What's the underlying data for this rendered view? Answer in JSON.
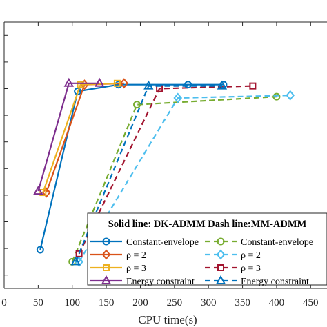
{
  "chart_data": {
    "type": "line",
    "xlabel": "CPU time(s)",
    "ylabel": "",
    "title": "",
    "xlim": [
      0,
      474
    ],
    "ylim": [
      0,
      1
    ],
    "x_ticks": [
      0,
      50,
      100,
      150,
      200,
      250,
      300,
      350,
      400,
      450
    ],
    "x_tick_labels": [
      "0",
      "50",
      "100",
      "150",
      "200",
      "250",
      "300",
      "350",
      "400",
      "450"
    ],
    "y_ticks": [
      0.05,
      0.15,
      0.25,
      0.35,
      0.45,
      0.55,
      0.65,
      0.75,
      0.85,
      0.95
    ],
    "legend": {
      "title": "Solid line: DK-ADMM Dash line:MM-ADMM",
      "placement": "bottom-right"
    },
    "series": [
      {
        "name": "Constant-envelope",
        "style": "solid",
        "marker": "circle",
        "color": "#0072BD",
        "x": [
          53,
          108,
          168,
          270,
          322
        ],
        "y": [
          0.145,
          0.74,
          0.765,
          0.765,
          0.765
        ]
      },
      {
        "name": "ρ = 2",
        "style": "solid",
        "marker": "diamond",
        "color": "#D95319",
        "x": [
          62,
          118,
          176
        ],
        "y": [
          0.36,
          0.765,
          0.77
        ]
      },
      {
        "name": "ρ = 3",
        "style": "solid",
        "marker": "square",
        "color": "#EDB120",
        "x": [
          57,
          112,
          166
        ],
        "y": [
          0.36,
          0.765,
          0.77
        ]
      },
      {
        "name": "Energy constraint",
        "style": "solid",
        "marker": "triangle",
        "color": "#7E2F8E",
        "x": [
          50,
          95,
          140
        ],
        "y": [
          0.365,
          0.77,
          0.77
        ]
      },
      {
        "name": "Constant-envelope",
        "style": "dashed",
        "marker": "circle",
        "color": "#77AC30",
        "x": [
          100,
          195,
          400
        ],
        "y": [
          0.1,
          0.69,
          0.72
        ]
      },
      {
        "name": "ρ = 2",
        "style": "dashed",
        "marker": "diamond",
        "color": "#4DBEEE",
        "x": [
          110,
          255,
          420
        ],
        "y": [
          0.1,
          0.715,
          0.725
        ]
      },
      {
        "name": "ρ = 3",
        "style": "dashed",
        "marker": "square",
        "color": "#A2142F",
        "x": [
          110,
          228,
          365
        ],
        "y": [
          0.13,
          0.75,
          0.76
        ]
      },
      {
        "name": "Energy constraint",
        "style": "dashed",
        "marker": "triangle",
        "color": "#0072BD",
        "x": [
          105,
          212,
          320
        ],
        "y": [
          0.1,
          0.76,
          0.76
        ]
      }
    ]
  }
}
